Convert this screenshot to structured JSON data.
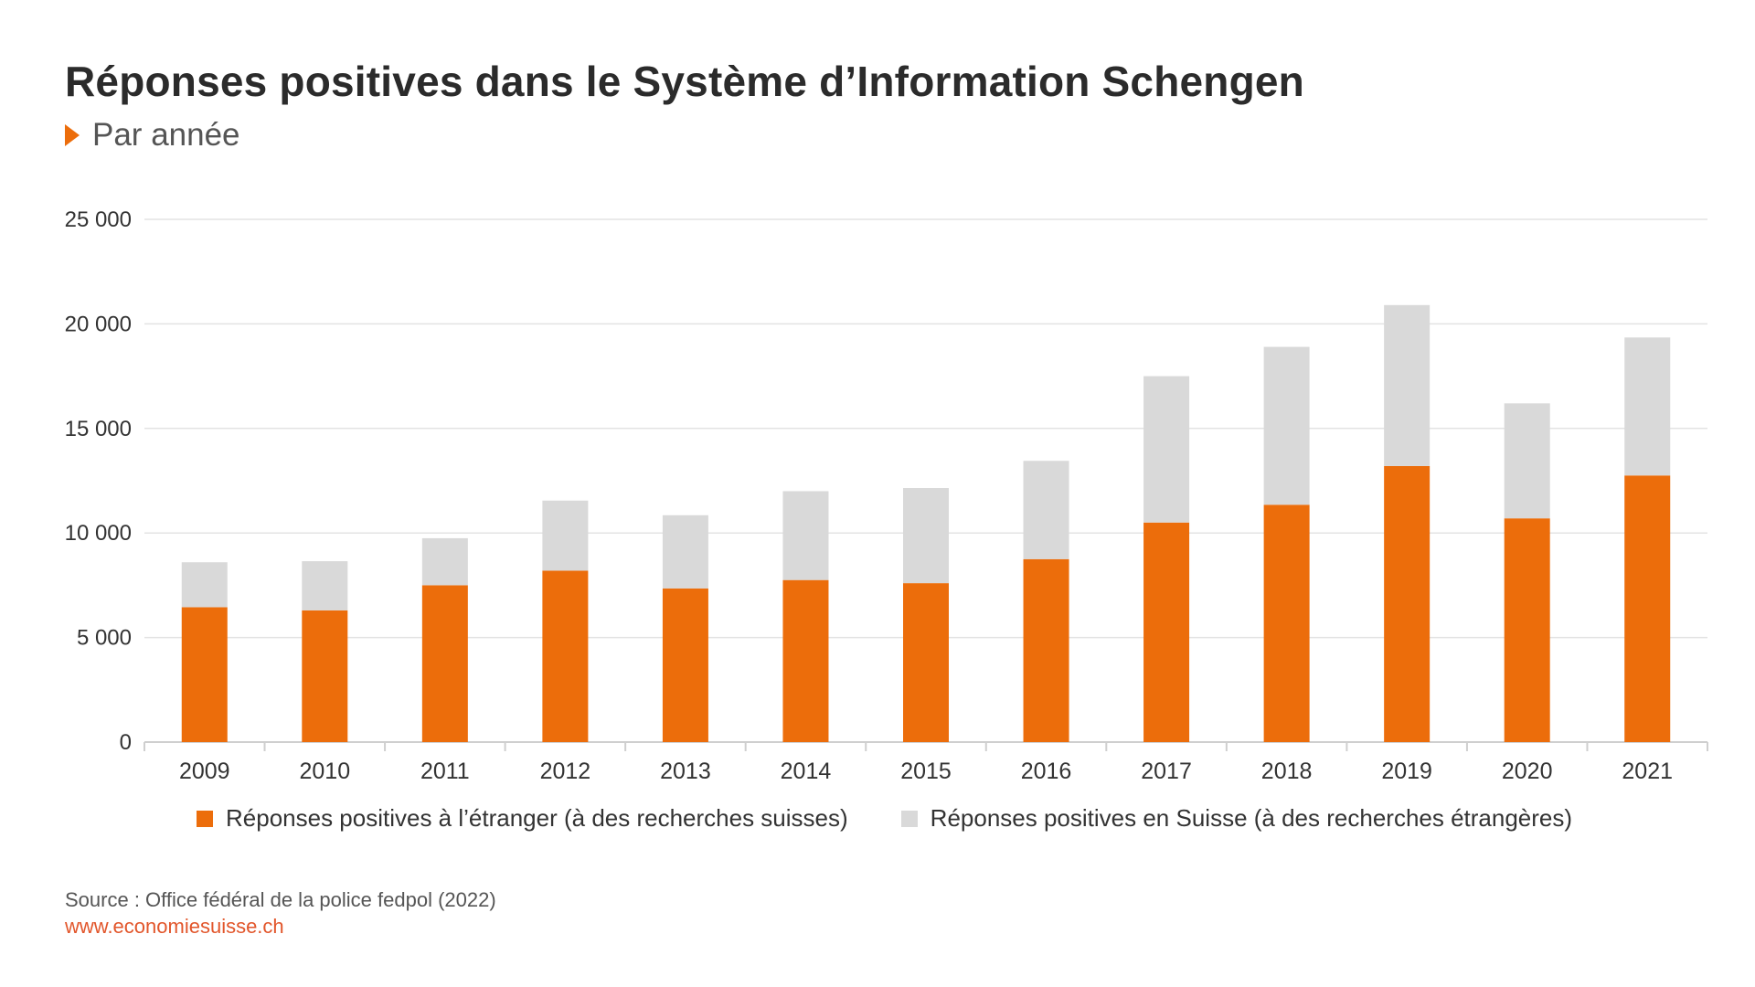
{
  "title": "Réponses positives dans le Système d’Information Schengen",
  "subtitle": "Par année",
  "source": "Source : Office fédéral de la police fedpol (2022)",
  "url": "www.economiesuisse.ch",
  "colors": {
    "accent": "#ec6d0b",
    "series_abroad": "#ec6d0b",
    "series_switzerland": "#d9d9d9",
    "grid": "#e3e3e3",
    "url": "#e2562b"
  },
  "legend": {
    "abroad": "Réponses positives à l’étranger (à des recherches suisses)",
    "switzerland": "Réponses positives en Suisse (à des recherches étrangères)"
  },
  "chart_data": {
    "type": "bar",
    "stacked": true,
    "title": "Réponses positives dans le Système d’Information Schengen",
    "subtitle": "Par année",
    "categories": [
      "2009",
      "2010",
      "2011",
      "2012",
      "2013",
      "2014",
      "2015",
      "2016",
      "2017",
      "2018",
      "2019",
      "2020",
      "2021"
    ],
    "series": [
      {
        "name": "Réponses positives à l’étranger (à des recherches suisses)",
        "color": "#ec6d0b",
        "values": [
          6450,
          6300,
          7500,
          8200,
          7350,
          7750,
          7600,
          8750,
          10500,
          11350,
          13200,
          10700,
          12750
        ]
      },
      {
        "name": "Réponses positives en Suisse (à des recherches étrangères)",
        "color": "#d9d9d9",
        "values": [
          2150,
          2350,
          2250,
          3350,
          3500,
          4250,
          4550,
          4700,
          7000,
          7550,
          7700,
          5500,
          6600
        ]
      }
    ],
    "y_ticks": [
      0,
      5000,
      10000,
      15000,
      20000,
      25000
    ],
    "y_tick_labels": [
      "0",
      "5 000",
      "10 000",
      "15 000",
      "20 000",
      "25 000"
    ],
    "ylim": [
      0,
      25000
    ],
    "grid": true,
    "legend_position": "bottom"
  }
}
